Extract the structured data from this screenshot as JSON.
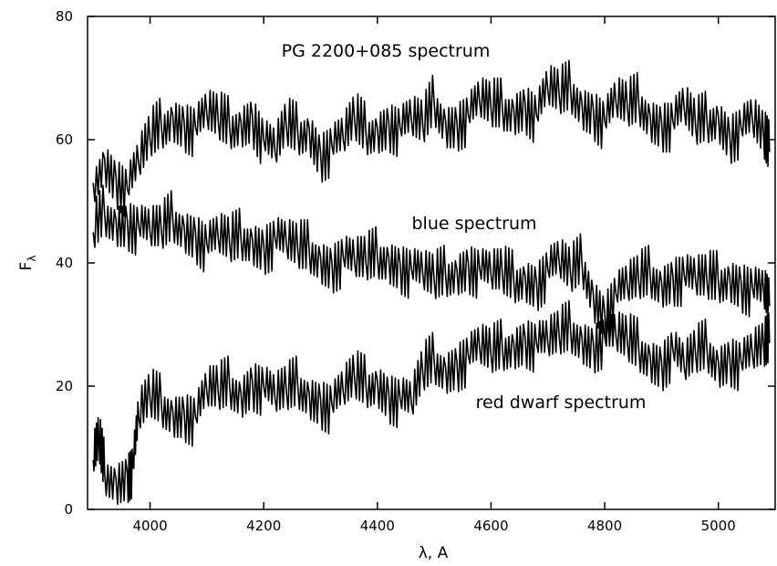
{
  "chart_data": {
    "type": "line",
    "title": "",
    "xlabel": "λ, A",
    "ylabel_main": "F",
    "ylabel_sub": "λ",
    "xlim": [
      3890,
      5100
    ],
    "ylim": [
      0,
      80
    ],
    "x_ticks": [
      4000,
      4200,
      4400,
      4600,
      4800,
      5000
    ],
    "y_ticks": [
      0,
      20,
      40,
      60,
      80
    ],
    "grid": false,
    "annotations": [
      {
        "text": "PG 2200+085 spectrum",
        "series": "PG 2200+085 spectrum"
      },
      {
        "text": "blue spectrum",
        "series": "blue spectrum"
      },
      {
        "text": "red dwarf spectrum",
        "series": "red dwarf spectrum"
      }
    ],
    "series": [
      {
        "name": "PG 2200+085 spectrum",
        "x": [
          3900,
          3920,
          3940,
          3960,
          3980,
          4000,
          4020,
          4040,
          4060,
          4080,
          4100,
          4120,
          4140,
          4160,
          4180,
          4200,
          4220,
          4240,
          4260,
          4280,
          4300,
          4320,
          4340,
          4360,
          4380,
          4400,
          4420,
          4440,
          4460,
          4480,
          4500,
          4520,
          4540,
          4560,
          4580,
          4600,
          4620,
          4640,
          4660,
          4680,
          4700,
          4720,
          4740,
          4760,
          4780,
          4800,
          4820,
          4840,
          4860,
          4880,
          4900,
          4920,
          4940,
          4960,
          4980,
          5000,
          5020,
          5040,
          5060,
          5080,
          5090
        ],
        "y": [
          53,
          57,
          54,
          52,
          56,
          60,
          62,
          64,
          63,
          62,
          64,
          63,
          62,
          63,
          64,
          60,
          58,
          62,
          61,
          62,
          58,
          59,
          60,
          63,
          61,
          62,
          63,
          62,
          63,
          62,
          66,
          63,
          63,
          64,
          66,
          65,
          65,
          65,
          66,
          64,
          68,
          67,
          68,
          66,
          65,
          63,
          66,
          65,
          66,
          64,
          63,
          63,
          65,
          62,
          63,
          64,
          61,
          62,
          63,
          60,
          58
        ]
      },
      {
        "name": "blue spectrum",
        "x": [
          3900,
          3920,
          3940,
          3960,
          3980,
          4000,
          4020,
          4040,
          4060,
          4080,
          4100,
          4120,
          4140,
          4160,
          4180,
          4200,
          4220,
          4240,
          4260,
          4280,
          4300,
          4320,
          4340,
          4360,
          4380,
          4400,
          4420,
          4440,
          4460,
          4480,
          4500,
          4520,
          4540,
          4560,
          4580,
          4600,
          4620,
          4640,
          4660,
          4680,
          4700,
          4720,
          4740,
          4760,
          4780,
          4800,
          4820,
          4840,
          4860,
          4880,
          4900,
          4920,
          4940,
          4960,
          4980,
          5000,
          5020,
          5040,
          5060,
          5080,
          5090
        ],
        "y": [
          45,
          48,
          47,
          47,
          46,
          45,
          45,
          47,
          46,
          45,
          43,
          44,
          43,
          44,
          44,
          43,
          44,
          43,
          42,
          42,
          41,
          40,
          41,
          40,
          40,
          41,
          41,
          40,
          39,
          38,
          37,
          38,
          39,
          40,
          39,
          38,
          38,
          37,
          38,
          37,
          39,
          40,
          38,
          40,
          35,
          32,
          35,
          36,
          37,
          38,
          37,
          38,
          38,
          37,
          37,
          37,
          38,
          37,
          36,
          35,
          33
        ]
      },
      {
        "name": "red dwarf spectrum",
        "x": [
          3900,
          3910,
          3920,
          3940,
          3960,
          3970,
          3980,
          4000,
          4020,
          4040,
          4060,
          4080,
          4100,
          4120,
          4140,
          4160,
          4180,
          4200,
          4220,
          4240,
          4260,
          4280,
          4300,
          4320,
          4340,
          4360,
          4380,
          4400,
          4420,
          4440,
          4460,
          4480,
          4500,
          4520,
          4540,
          4560,
          4580,
          4600,
          4620,
          4640,
          4660,
          4680,
          4700,
          4720,
          4740,
          4760,
          4780,
          4800,
          4820,
          4840,
          4860,
          4880,
          4900,
          4920,
          4940,
          4960,
          4980,
          5000,
          5020,
          5040,
          5060,
          5080,
          5090
        ],
        "y": [
          8,
          11,
          6,
          5,
          6,
          7,
          15,
          18,
          17,
          16,
          16,
          15,
          19,
          19,
          20,
          19,
          21,
          20,
          18,
          19,
          20,
          19,
          18,
          17,
          19,
          21,
          20,
          21,
          19,
          18,
          17,
          22,
          24,
          23,
          24,
          25,
          26,
          25,
          26,
          27,
          28,
          27,
          27,
          28,
          29,
          28,
          27,
          28,
          28,
          27,
          26,
          25,
          24,
          26,
          23,
          25,
          26,
          24,
          25,
          24,
          25,
          26,
          27
        ]
      }
    ]
  }
}
